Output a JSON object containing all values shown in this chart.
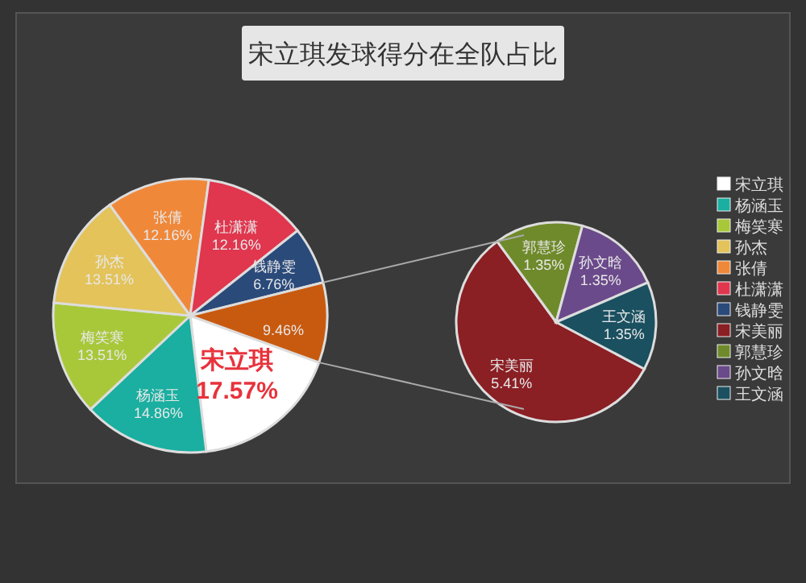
{
  "chart_data": [
    {
      "type": "pie",
      "title": "宋立琪发球得分在全队占比",
      "legend": "right",
      "categories": [
        "宋立琪",
        "杨涵玉",
        "梅笑寒",
        "孙杰",
        "张倩",
        "杜潇潇",
        "钱静雯",
        null
      ],
      "values": [
        17.57,
        14.86,
        13.51,
        13.51,
        12.16,
        12.16,
        6.76,
        9.46
      ],
      "value_labels": [
        "17.57%",
        "14.86%",
        "13.51%",
        "13.51%",
        "12.16%",
        "12.16%",
        "6.76%",
        "9.46%"
      ],
      "colors": [
        "#ffffff",
        "#1aafa0",
        "#a8c83a",
        "#e3c35a",
        "#f0883a",
        "#e0364e",
        "#2a4a7a",
        "#c85a10"
      ]
    },
    {
      "type": "pie",
      "legend": "right",
      "categories": [
        "宋美丽",
        "郭慧珍",
        "孙文晗",
        "王文涵"
      ],
      "values": [
        5.41,
        1.35,
        1.35,
        1.35
      ],
      "value_labels": [
        "5.41%",
        "1.35%",
        "1.35%",
        "1.35%"
      ],
      "colors": [
        "#8a1f24",
        "#6f8a2a",
        "#6a4a8a",
        "#1a5060"
      ]
    }
  ]
}
